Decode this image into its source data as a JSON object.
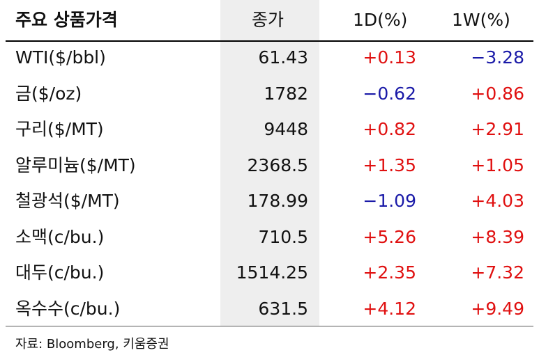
{
  "table": {
    "header": [
      "주요 상품가격",
      "종가",
      "1D(%)",
      "1W(%)"
    ],
    "rows": [
      [
        "WTI($/bbl)",
        "61.43",
        "+0.13",
        "−3.28"
      ],
      [
        "금($/oz)",
        "1782",
        "−0.62",
        "+0.86"
      ],
      [
        "구리($/MT)",
        "9448",
        "+0.82",
        "+2.91"
      ],
      [
        "알루미늄($/MT)",
        "2368.5",
        "+1.35",
        "+1.05"
      ],
      [
        "철광석($/MT)",
        "178.99",
        "−1.09",
        "+4.03"
      ],
      [
        "소맥(c/bu.)",
        "710.5",
        "+5.26",
        "+8.39"
      ],
      [
        "대두(c/bu.)",
        "1514.25",
        "+2.35",
        "+7.32"
      ],
      [
        "옥수수(c/bu.)",
        "631.5",
        "+4.12",
        "+9.49"
      ]
    ]
  },
  "source": "자료: Bloomberg, 키움증권"
}
